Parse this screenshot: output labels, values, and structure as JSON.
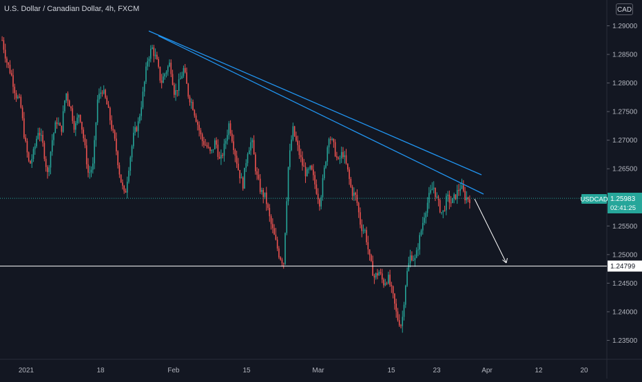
{
  "header": {
    "title": "U.S. Dollar / Canadian Dollar, 4h, FXCM",
    "currency": "CAD"
  },
  "price_tag": {
    "symbol": "USDCAD",
    "price": "1.25983",
    "countdown": "02:41:25"
  },
  "level_tag": {
    "price": "1.24799"
  },
  "colors": {
    "background": "#131722",
    "bull": "#26a69a",
    "bear": "#ef5350",
    "trendline": "#2196f3",
    "tag_green": "#26a69a",
    "level_line": "#ffffff",
    "arrow": "#ffffff"
  },
  "chart_data": {
    "type": "candlestick",
    "y_ticks": [
      "1.29000",
      "1.28500",
      "1.28000",
      "1.27500",
      "1.27000",
      "1.26500",
      "1.26000",
      "1.25500",
      "1.25000",
      "1.24500",
      "1.24000",
      "1.23500"
    ],
    "x_ticks": [
      "2021",
      "18",
      "Feb",
      "15",
      "Mar",
      "15",
      "23",
      "Apr",
      "12",
      "20"
    ],
    "ylim": [
      1.232,
      1.2935
    ],
    "current_price": 1.25983,
    "horizontal_level": 1.24799,
    "trendlines": [
      {
        "x1": "Jan 26",
        "y1": 1.2888,
        "x2": "Mar 29",
        "y2": 1.264
      },
      {
        "x1": "Jan 26",
        "y1": 1.2886,
        "x2": "Mar 29",
        "y2": 1.2608
      }
    ],
    "projection_arrow": {
      "from": [
        1.2597,
        "Mar 29"
      ],
      "to": [
        1.2478,
        "Apr 2"
      ]
    },
    "price_path": [
      1.2875,
      1.2838,
      1.2815,
      1.278,
      1.2765,
      1.27,
      1.2655,
      1.268,
      1.272,
      1.269,
      1.264,
      1.27,
      1.2735,
      1.2715,
      1.2785,
      1.276,
      1.272,
      1.275,
      1.27,
      1.264,
      1.2655,
      1.277,
      1.279,
      1.2765,
      1.2728,
      1.269,
      1.2635,
      1.26,
      1.266,
      1.271,
      1.273,
      1.278,
      1.284,
      1.2862,
      1.284,
      1.28,
      1.282,
      1.2835,
      1.278,
      1.28,
      1.2825,
      1.278,
      1.276,
      1.273,
      1.27,
      1.269,
      1.2675,
      1.27,
      1.266,
      1.269,
      1.273,
      1.269,
      1.265,
      1.262,
      1.268,
      1.27,
      1.264,
      1.261,
      1.26,
      1.256,
      1.253,
      1.25,
      1.2485,
      1.265,
      1.272,
      1.269,
      1.266,
      1.264,
      1.265,
      1.262,
      1.259,
      1.265,
      1.271,
      1.269,
      1.266,
      1.268,
      1.265,
      1.261,
      1.26,
      1.255,
      1.254,
      1.249,
      1.246,
      1.247,
      1.245,
      1.246,
      1.243,
      1.239,
      1.2375,
      1.246,
      1.25,
      1.249,
      1.253,
      1.257,
      1.26,
      1.262,
      1.259,
      1.257,
      1.26,
      1.259,
      1.2605,
      1.262,
      1.26,
      1.2598
    ]
  }
}
